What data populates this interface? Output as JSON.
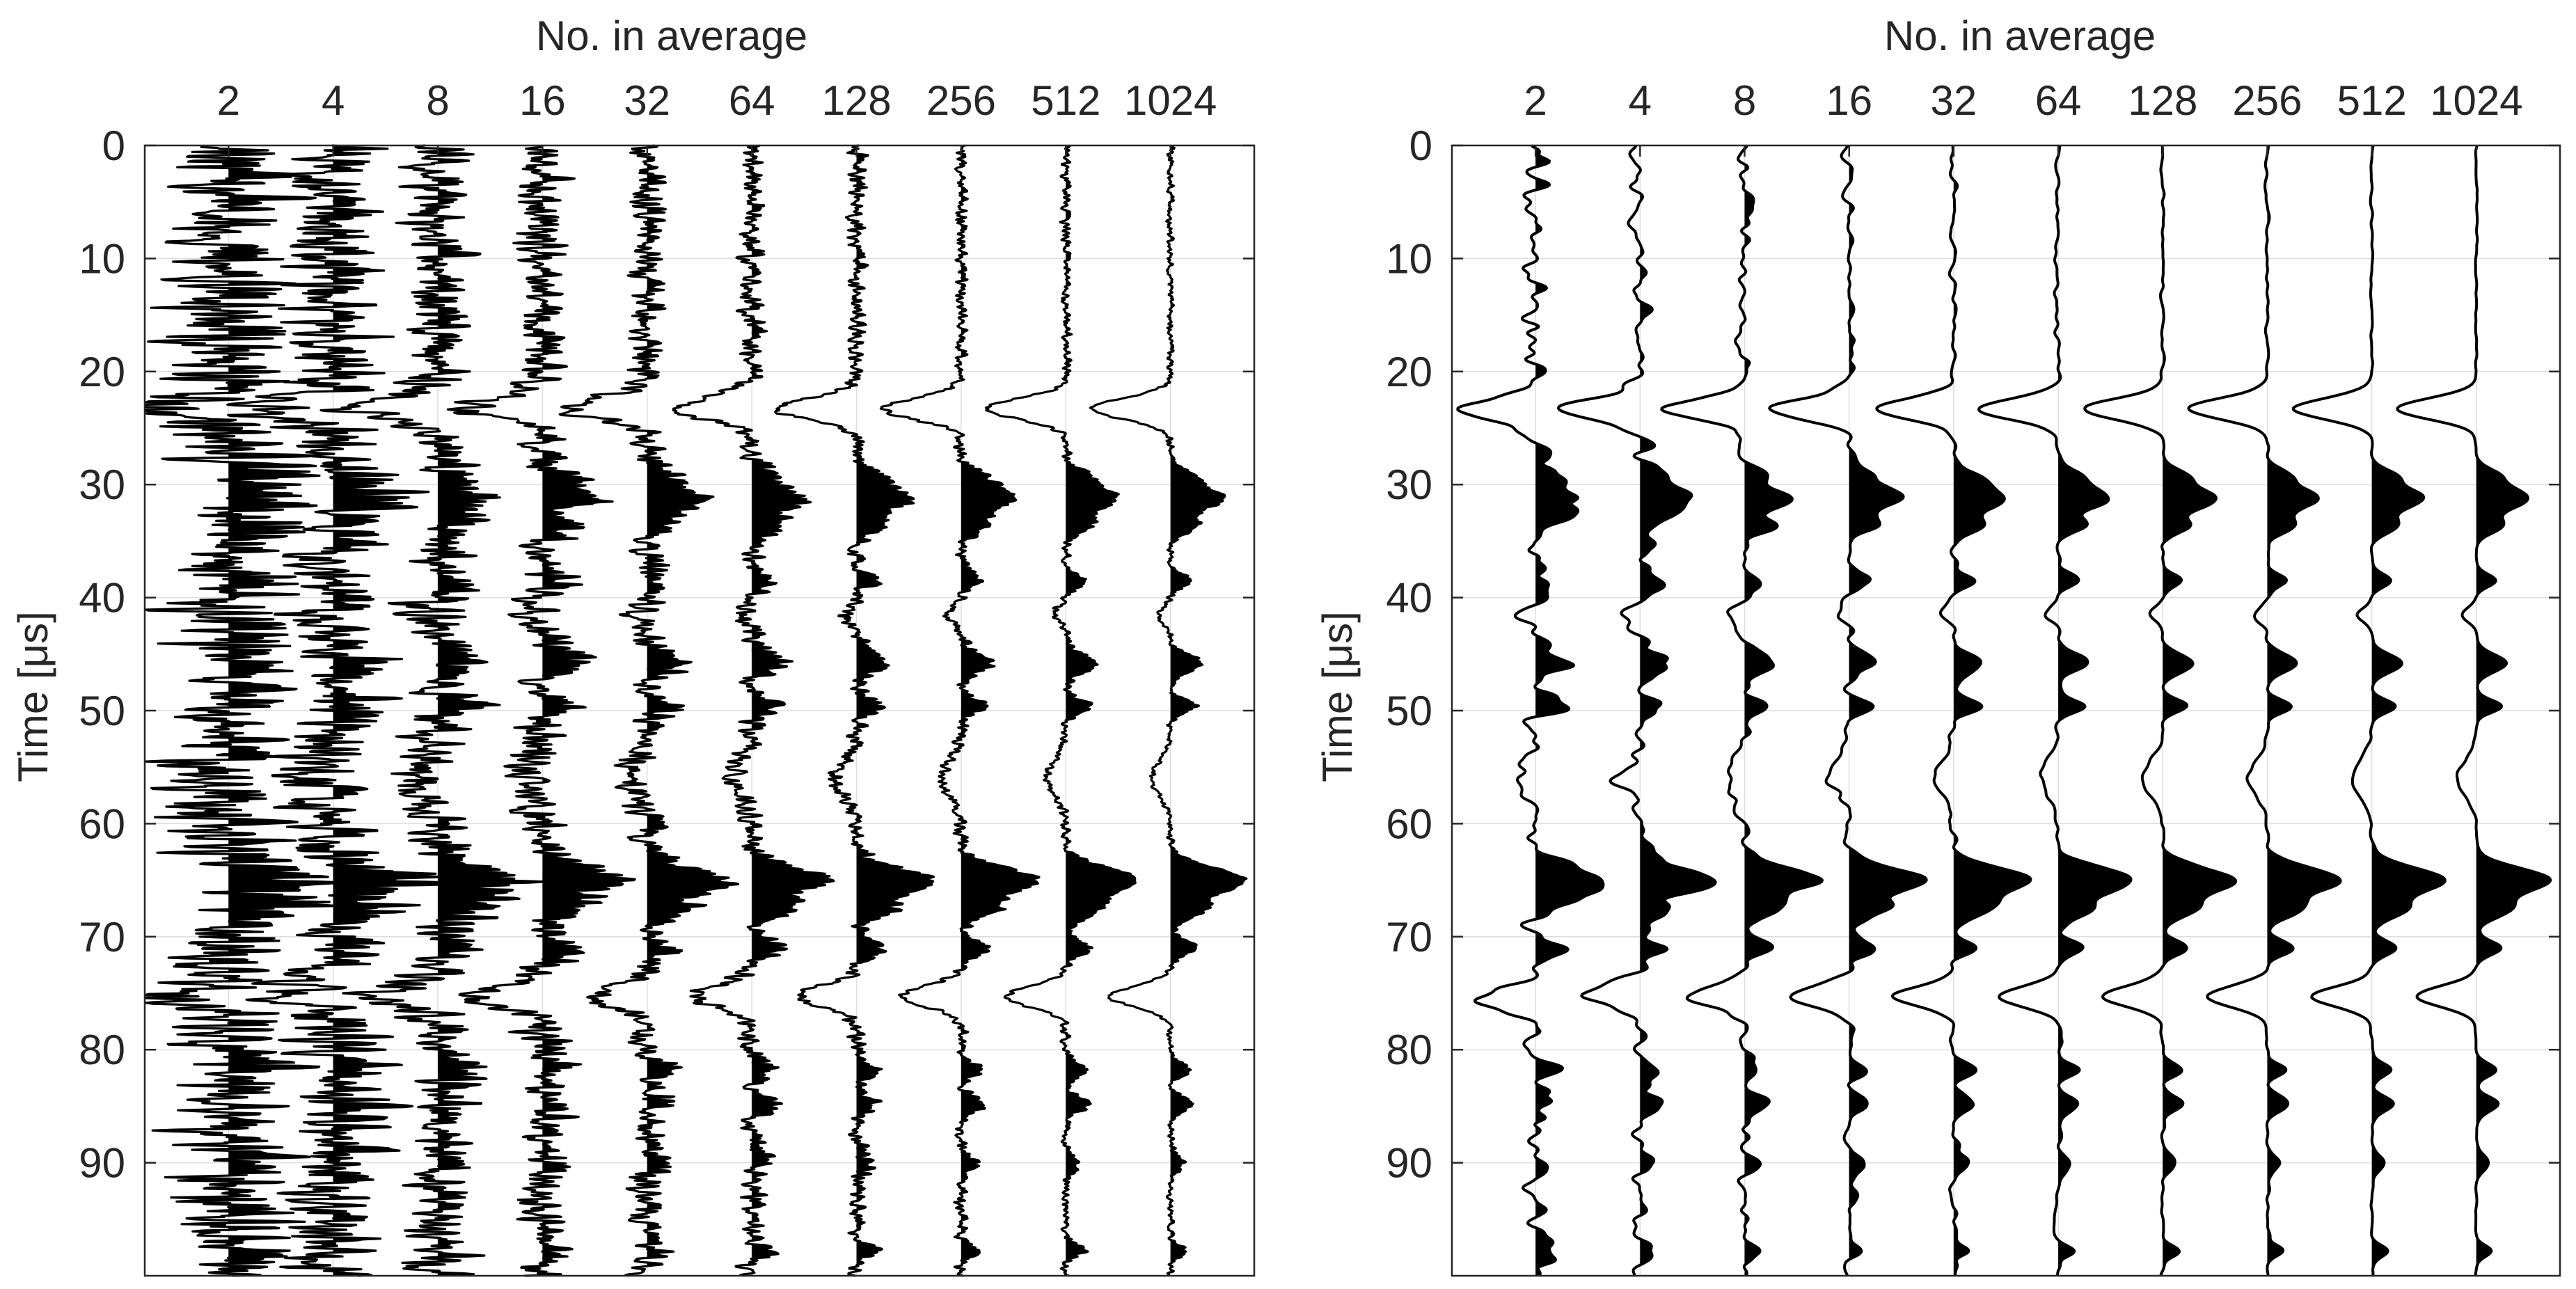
{
  "chart_data": [
    {
      "type": "line",
      "variant": "wiggle-trace",
      "title": "",
      "xlabel": "No. in average",
      "ylabel": "Time [μs]",
      "x_axis_position": "top",
      "y_axis_reversed": true,
      "ylim": [
        0,
        100
      ],
      "yticks": [
        "0",
        "10",
        "20",
        "30",
        "40",
        "50",
        "60",
        "70",
        "80",
        "90"
      ],
      "grid": true,
      "categories": [
        "2",
        "4",
        "8",
        "16",
        "32",
        "64",
        "128",
        "256",
        "512",
        "1024"
      ],
      "positive_fill": true,
      "noise_amplitude": [
        1.0,
        0.72,
        0.52,
        0.38,
        0.27,
        0.19,
        0.135,
        0.095,
        0.068,
        0.048
      ]
    },
    {
      "type": "line",
      "variant": "wiggle-trace",
      "title": "",
      "xlabel": "No. in average",
      "ylabel": "Time [μs]",
      "x_axis_position": "top",
      "y_axis_reversed": true,
      "ylim": [
        0,
        100
      ],
      "yticks": [
        "0",
        "10",
        "20",
        "30",
        "40",
        "50",
        "60",
        "70",
        "80",
        "90"
      ],
      "grid": true,
      "categories": [
        "2",
        "4",
        "8",
        "16",
        "32",
        "64",
        "128",
        "256",
        "512",
        "1024"
      ],
      "positive_fill": true,
      "noise_amplitude": [
        0.42,
        0.3,
        0.22,
        0.16,
        0.11,
        0.08,
        0.06,
        0.045,
        0.035,
        0.025
      ]
    }
  ]
}
